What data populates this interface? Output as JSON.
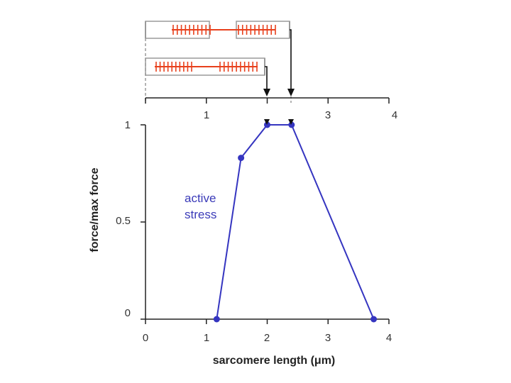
{
  "chart_data": {
    "type": "line",
    "title": "",
    "xlabel": "sarcomere length (μm)",
    "ylabel": "force/max force",
    "xlim": [
      0,
      4
    ],
    "ylim": [
      0,
      1
    ],
    "x_ticks": [
      "0",
      "1",
      "2",
      "3",
      "4"
    ],
    "y_ticks": [
      "0",
      "0.5",
      "1"
    ],
    "top_axis_ticks": [
      "1",
      "3",
      "4"
    ],
    "grid": false,
    "series": [
      {
        "name": "",
        "color": "#3535c0",
        "x": [
          1.17,
          1.57,
          2.0,
          2.4,
          3.75
        ],
        "y": [
          0.0,
          0.83,
          1.0,
          1.0,
          0.0
        ]
      }
    ],
    "annotations": [
      {
        "text": "active",
        "line": 1
      },
      {
        "text": "stress",
        "line": 2
      }
    ],
    "inset": {
      "description_colors": {
        "filament": "#e8401c",
        "frame": "#9a9a9a",
        "arrow": "#111111"
      },
      "sarcomere_length_markers": [
        2.0,
        2.4
      ]
    }
  }
}
